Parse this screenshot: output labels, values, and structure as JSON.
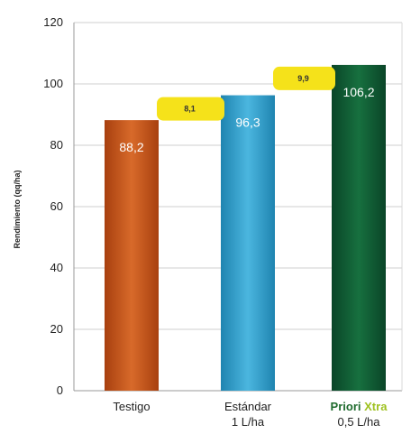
{
  "chart_data": {
    "type": "bar",
    "ylabel": "Rendimiento (qq/ha)",
    "ylim": [
      0,
      120
    ],
    "yticks": [
      0,
      20,
      40,
      60,
      80,
      100,
      120
    ],
    "grid": "horizontal",
    "categories": [
      {
        "line1": "Testigo",
        "line2": ""
      },
      {
        "line1": "Estándar",
        "line2": "1 L/ha"
      },
      {
        "line1_a": "Priori",
        "line1_b": "Xtra",
        "line2": "0,5 L/ha"
      }
    ],
    "values": [
      88.2,
      96.3,
      106.2
    ],
    "value_labels": [
      "88,2",
      "96,3",
      "106,2"
    ],
    "colors": [
      "#c4581f",
      "#2f9fc9",
      "#0f5a35"
    ],
    "differences": [
      {
        "label": "8,1",
        "between": [
          0,
          1
        ]
      },
      {
        "label": "9,9",
        "between": [
          1,
          2
        ]
      }
    ],
    "difference_color": "#f5e21a"
  }
}
